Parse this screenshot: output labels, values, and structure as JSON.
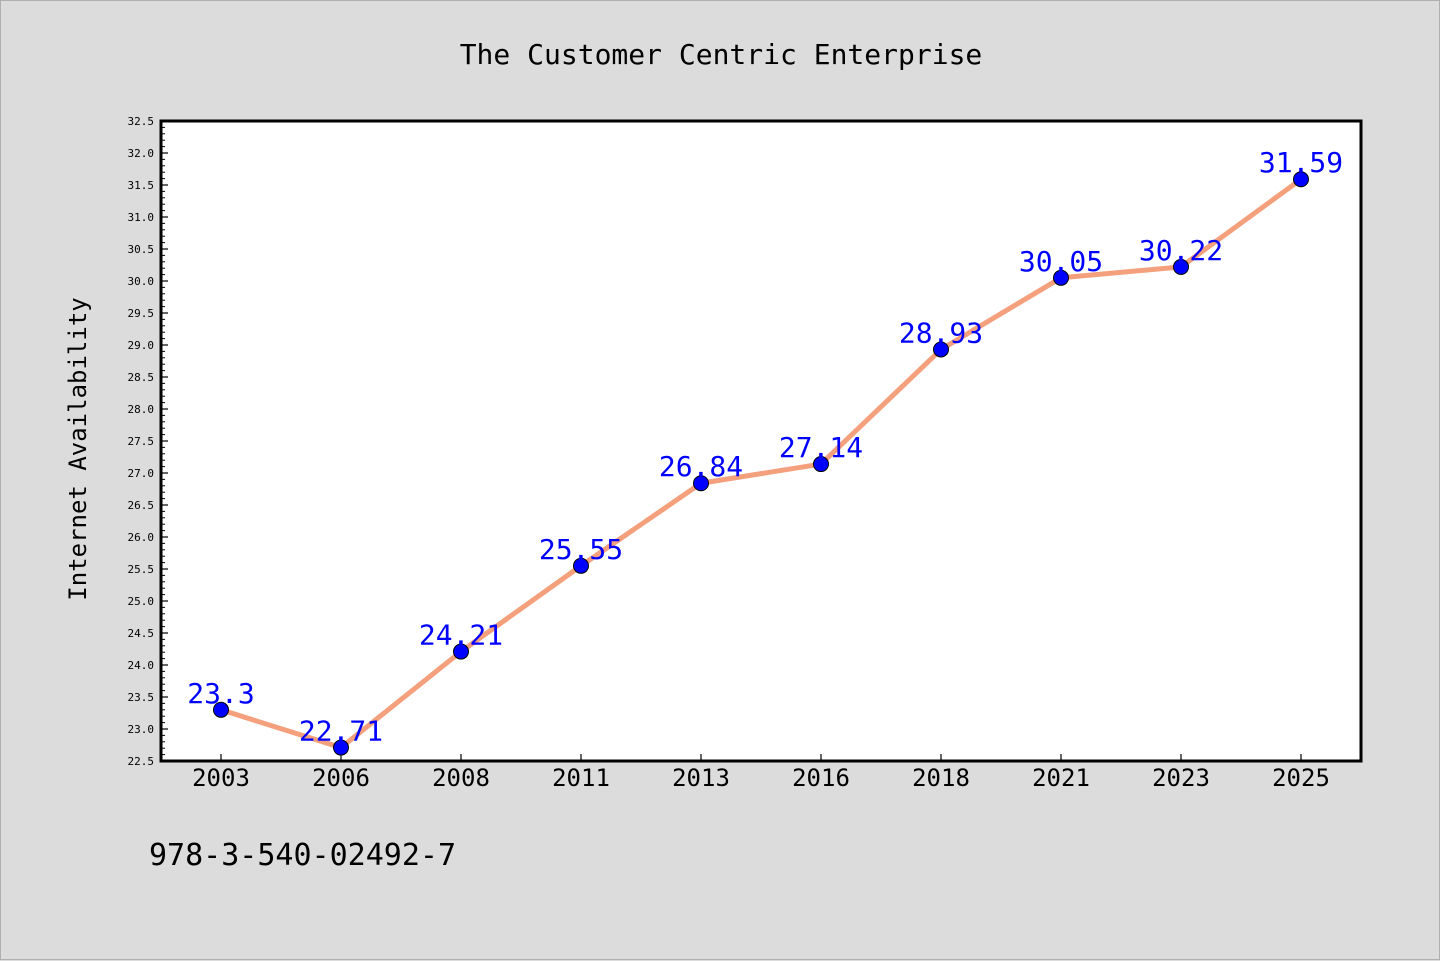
{
  "chart_data": {
    "type": "line",
    "title": "The Customer Centric Enterprise",
    "xlabel": "",
    "ylabel": "Internet Availability",
    "categories": [
      "2003",
      "2006",
      "2008",
      "2011",
      "2013",
      "2016",
      "2018",
      "2021",
      "2023",
      "2025"
    ],
    "series": [
      {
        "values": [
          23.3,
          22.71,
          24.21,
          25.55,
          26.84,
          27.14,
          28.93,
          30.05,
          30.22,
          31.59
        ],
        "data_labels": [
          "23.3",
          "22.71",
          "24.21",
          "25.55",
          "26.84",
          "27.14",
          "28.93",
          "30.05",
          "30.22",
          "31.59"
        ],
        "line_color": "#f4a07c",
        "marker_color": "#0000ff",
        "label_color": "#0000ff"
      }
    ],
    "ylim": [
      22.5,
      32.5
    ],
    "ytick_step": 0.5,
    "grid": false,
    "legend": "none",
    "background": "#dcdcdc",
    "plot_background": "#ffffff"
  },
  "footer": {
    "isbn": "978-3-540-02492-7"
  }
}
